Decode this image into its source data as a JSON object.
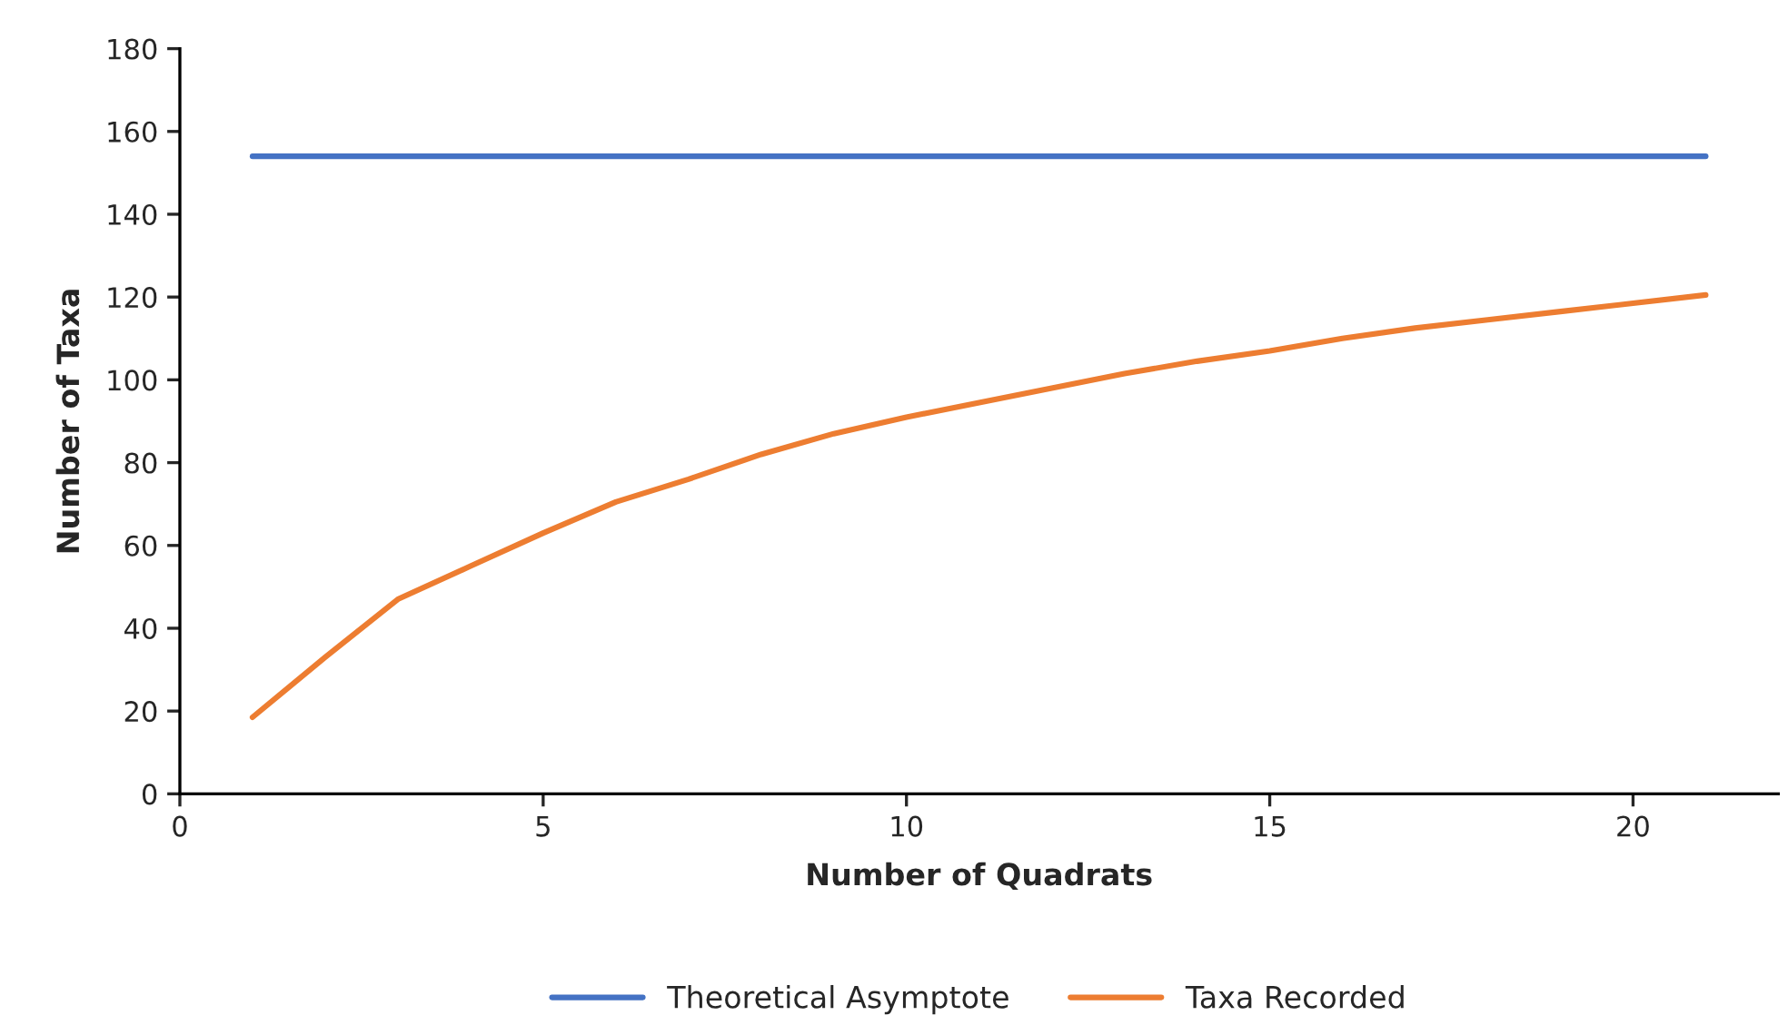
{
  "chart_data": {
    "type": "line",
    "xlabel": "Number of Quadrats",
    "ylabel": "Number of Taxa",
    "xlim": [
      0,
      22
    ],
    "xticks": [
      0,
      5,
      10,
      15,
      20
    ],
    "ylim": [
      0,
      180
    ],
    "yticks": [
      0,
      20,
      40,
      60,
      80,
      100,
      120,
      140,
      160,
      180
    ],
    "grid": false,
    "legend": "bottom",
    "marker": "none",
    "line_style": "solid",
    "series": [
      {
        "name": "Theoretical Asymptote",
        "color": "#4472c4",
        "x": [
          1,
          21
        ],
        "values": [
          154,
          154
        ]
      },
      {
        "name": "Taxa Recorded",
        "color": "#ed7d31",
        "x": [
          1,
          2,
          3,
          4,
          5,
          6,
          7,
          8,
          9,
          10,
          11,
          12,
          13,
          14,
          15,
          16,
          17,
          18,
          19,
          20,
          21
        ],
        "values": [
          18.5,
          33,
          47,
          55,
          63,
          70.5,
          76,
          82,
          87,
          91,
          94.5,
          98,
          101.5,
          104.5,
          107,
          110,
          112.5,
          114.5,
          116.5,
          118.5,
          120.5
        ]
      }
    ]
  }
}
